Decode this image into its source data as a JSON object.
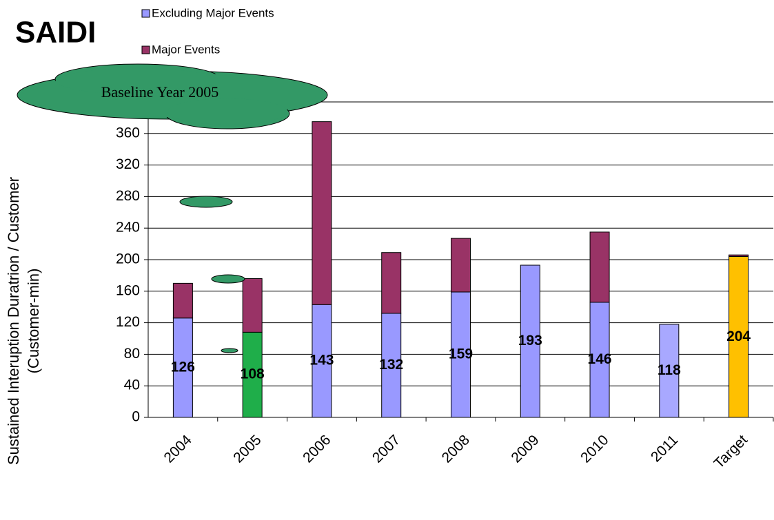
{
  "chart_data": {
    "type": "stacked_bar",
    "title": "SAIDI",
    "y_label": [
      "Sustained  Interuption  Duratrion  / Customer",
      "(Customer-min)"
    ],
    "annotation": "Baseline Year 2005",
    "categories": [
      "2004",
      "2005",
      "2006",
      "2007",
      "2008",
      "2009",
      "2010",
      "2011",
      "Target"
    ],
    "series": [
      {
        "name": "Excluding Major Events",
        "color": "#9999ff",
        "point_colors": [
          "#9999ff",
          "#1fae4a",
          "#9999ff",
          "#9999ff",
          "#9999ff",
          "#9999ff",
          "#9999ff",
          "#a8a8ff",
          "#ffc000"
        ],
        "values": [
          126,
          108,
          143,
          132,
          159,
          193,
          146,
          118,
          204
        ]
      },
      {
        "name": "Major Events",
        "color": "#993366",
        "values": [
          44,
          68,
          232,
          77,
          68,
          null,
          89,
          null,
          2
        ]
      }
    ],
    "ylim": [
      0,
      400
    ],
    "yticks": [
      0,
      40,
      80,
      120,
      160,
      200,
      240,
      280,
      320,
      360
    ],
    "grid": true
  }
}
